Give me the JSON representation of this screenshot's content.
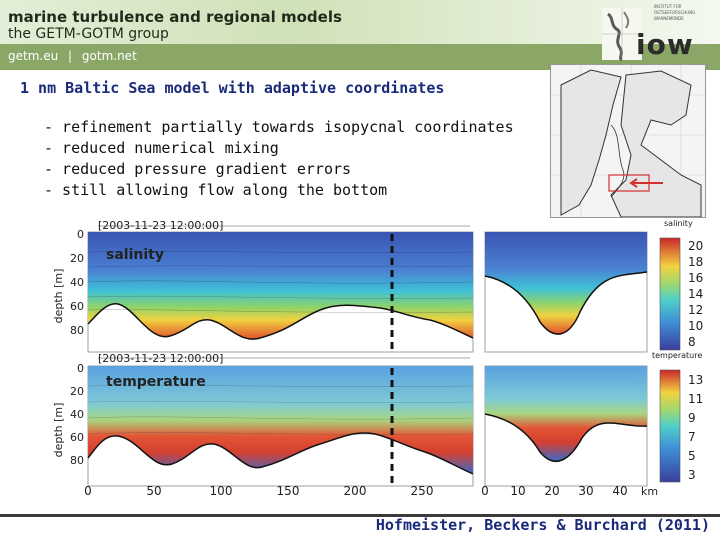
{
  "header": {
    "title": "marine turbulence and regional models",
    "subtitle": "the GETM-GOTM group",
    "links": [
      "getm.eu",
      "|",
      "gotm.net"
    ],
    "logo_text": "INSTITUT FÜR OSTSEEFORSCHUNG WARNEMÜNDE",
    "logo_word": "iow",
    "bar_color": "#8aa768"
  },
  "slide": {
    "title": "1 nm Baltic Sea model with adaptive coordinates",
    "bullets": [
      "- refinement partially towards isopycnal coordinates",
      "- reduced numerical mixing",
      "- reduced pressure gradient errors",
      "- still allowing flow along the bottom"
    ]
  },
  "chart_data": [
    {
      "type": "heatmap",
      "title": "[2003-11-23 12:00:00]",
      "panel_label": "salinity",
      "ylabel": "depth [m]",
      "yticks": [
        0,
        20,
        40,
        60,
        80
      ],
      "colorbar_label": "salinity",
      "colorbar_ticks": [
        20,
        18,
        16,
        14,
        12,
        10,
        8
      ]
    },
    {
      "type": "heatmap",
      "title": "[2003-11-23 12:00:00]",
      "panel_label": "temperature",
      "ylabel": "depth [m]",
      "yticks": [
        0,
        20,
        40,
        60,
        80
      ],
      "xticks_left": [
        0,
        50,
        100,
        150,
        200,
        250
      ],
      "xticks_right": [
        0,
        10,
        20,
        30,
        40
      ],
      "xlabel": "km",
      "colorbar_label": "temperature",
      "colorbar_ticks": [
        13,
        11,
        9,
        7,
        5,
        3
      ]
    }
  ],
  "footer": {
    "citation": "Hofmeister, Beckers & Burchard (2011)"
  }
}
